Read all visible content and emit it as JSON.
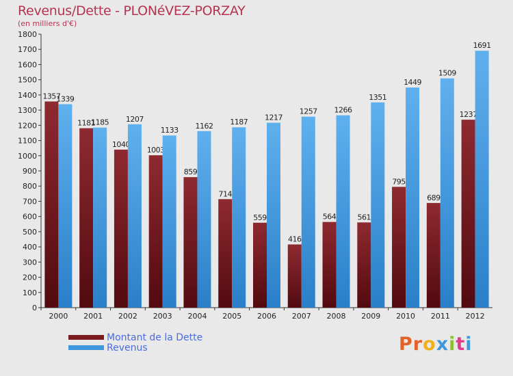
{
  "title": "Revenus/Dette - PLONéVEZ-PORZAY",
  "subtitle": "(en milliers d'€)",
  "logo_text": "Proxiti",
  "colors": {
    "background": "#e9e9e9",
    "dette": "#7a1a1f",
    "revenus": "#3f97dd",
    "title": "#b5334f",
    "legend_text": "#4a6be0",
    "logo_letters": [
      "#e2622a",
      "#e2622a",
      "#f2b01e",
      "#3f97dd",
      "#8cbf32",
      "#e23a8a",
      "#3f97dd"
    ]
  },
  "chart_data": {
    "type": "bar",
    "title": "Revenus/Dette - PLONéVEZ-PORZAY",
    "subtitle": "(en milliers d'€)",
    "categories": [
      "2000",
      "2001",
      "2002",
      "2003",
      "2004",
      "2005",
      "2006",
      "2007",
      "2008",
      "2009",
      "2010",
      "2011",
      "2012"
    ],
    "series": [
      {
        "name": "Montant de la Dette",
        "values": [
          1357,
          1181,
          1040,
          1003,
          859,
          714,
          559,
          416,
          564,
          561,
          795,
          689,
          1237
        ]
      },
      {
        "name": "Revenus",
        "values": [
          1339,
          1185,
          1207,
          1133,
          1162,
          1187,
          1217,
          1257,
          1266,
          1351,
          1449,
          1509,
          1691
        ]
      }
    ],
    "ylim": [
      0,
      1800
    ],
    "yticks": [
      0,
      100,
      200,
      300,
      400,
      500,
      600,
      700,
      800,
      900,
      1000,
      1100,
      1200,
      1300,
      1400,
      1500,
      1600,
      1700,
      1800
    ],
    "grid": false,
    "legend_position": "bottom-left"
  }
}
